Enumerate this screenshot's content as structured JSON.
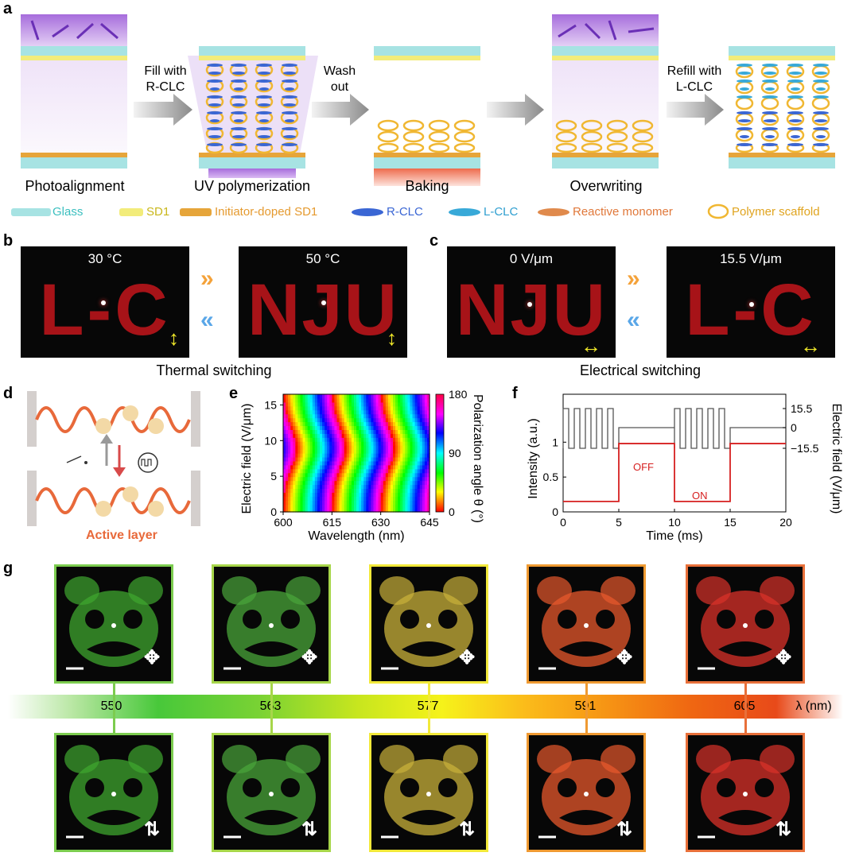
{
  "panel_labels": {
    "a": "a",
    "b": "b",
    "c": "c",
    "d": "d",
    "e": "e",
    "f": "f",
    "g": "g"
  },
  "a": {
    "arrow1": [
      "Fill with",
      "R-CLC"
    ],
    "arrow2": [
      "Wash",
      "out"
    ],
    "arrow4": [
      "Refill with",
      "L-CLC"
    ],
    "stages": [
      "Photoalignment",
      "UV polymerization",
      "Baking",
      "Overwriting"
    ],
    "legend": [
      "Glass",
      "SD1",
      "Initiator-doped SD1",
      "R-CLC",
      "L-CLC",
      "Reactive monomer",
      "Polymer scaffold"
    ],
    "colors": {
      "glass": "#a7e3e3",
      "sd1": "#f2ec7a",
      "initiator_sd1": "#e6a53a",
      "rclc": "#3a66d4",
      "lclc": "#38a9d8",
      "monomer": "#e08a4c",
      "scaffold": "#f0b732",
      "uv": "#b27be0"
    }
  },
  "b": {
    "img1_title": "30 °C",
    "img1_text": "L-C",
    "img2_title": "50 °C",
    "img2_text": "NJU",
    "caption": "Thermal switching"
  },
  "c": {
    "img1_title": "0 V/μm",
    "img1_text": "NJU",
    "img2_title": "15.5 V/μm",
    "img2_text": "L-C",
    "caption": "Electrical switching"
  },
  "d": {
    "label": "Active layer"
  },
  "e": {
    "xlabel": "Wavelength (nm)",
    "ylabel": "Electric field (V/μm)",
    "cbar_label": "Polarization angle θ (°)",
    "xticks": [
      "600",
      "615",
      "630",
      "645"
    ],
    "yticks": [
      "0",
      "5",
      "10",
      "15"
    ],
    "cbar_ticks": [
      "0",
      "90",
      "180"
    ]
  },
  "f": {
    "xlabel": "Time (ms)",
    "ylabel_left": "Intensity (a.u.)",
    "ylabel_right": "Electric field (V/μm)",
    "xticks": [
      "0",
      "5",
      "10",
      "15",
      "20"
    ],
    "yticks_left": [
      "0",
      "0.5",
      "1"
    ],
    "yticks_right": [
      "15.5",
      "0",
      "−15.5"
    ],
    "annotations": [
      "OFF",
      "ON"
    ]
  },
  "g": {
    "wavelength_labels": [
      "550",
      "563",
      "577",
      "591",
      "605"
    ],
    "axis_label": "λ (nm)",
    "frame_colors": [
      "#7ccc4f",
      "#a7d64a",
      "#f2e93a",
      "#ef9a32",
      "#e8703a"
    ],
    "image_colors": [
      "#3fa62f",
      "#4aa53a",
      "#c9b13b",
      "#e7582c",
      "#d9322a"
    ]
  },
  "chart_data": [
    {
      "type": "heatmap",
      "xlabel": "Wavelength (nm)",
      "ylabel": "Electric field (V/μm)",
      "xlim": [
        600,
        645
      ],
      "ylim": [
        0,
        16.5
      ],
      "colorbar": {
        "label": "Polarization angle θ (°)",
        "range": [
          0,
          180
        ]
      },
      "description_bands": "hue cycles with wavelength; bands bend toward shorter wavelength at mid field"
    },
    {
      "type": "line",
      "xlabel": "Time (ms)",
      "xlim": [
        0,
        20
      ],
      "series": [
        {
          "name": "Intensity",
          "axis": "left",
          "x": [
            0,
            5,
            5,
            10,
            10,
            15,
            15,
            20
          ],
          "y": [
            0.15,
            0.15,
            0.98,
            0.98,
            0.15,
            0.15,
            0.98,
            0.98
          ]
        },
        {
          "name": "Electric field",
          "axis": "right",
          "description": "square wave ±15.5 V/μm during 0–5 ms and 10–15 ms, 0 otherwise"
        }
      ],
      "ylim_left": [
        0,
        1.3
      ],
      "ylim_right": [
        -15.5,
        15.5
      ]
    }
  ]
}
